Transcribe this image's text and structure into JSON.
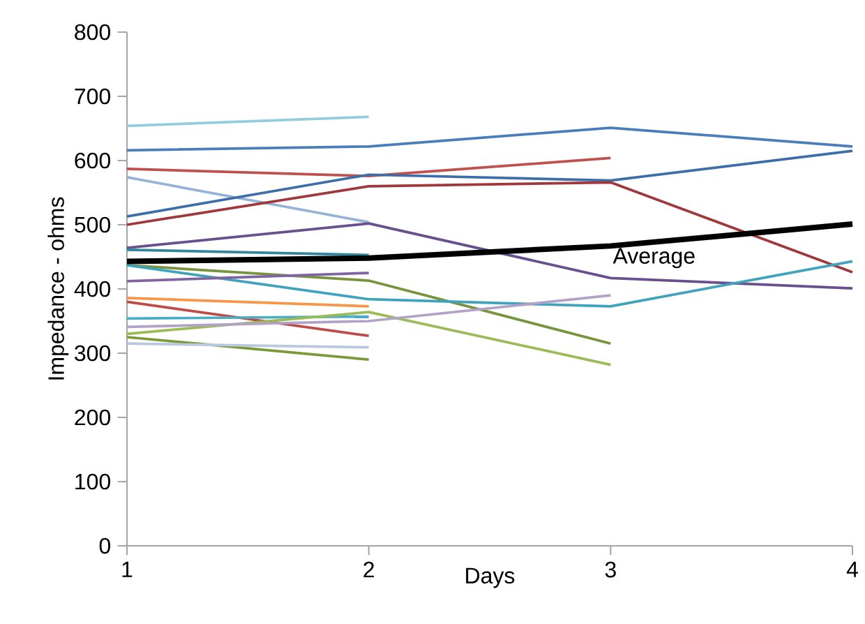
{
  "chart_data": {
    "type": "line",
    "xlabel": "Days",
    "ylabel": "Impedance - ohms",
    "x": [
      1,
      2,
      3,
      4
    ],
    "xlim": [
      1,
      4
    ],
    "xticks": [
      1,
      2,
      3,
      4
    ],
    "ylim": [
      0,
      800
    ],
    "yticks": [
      0,
      100,
      200,
      300,
      400,
      500,
      600,
      700,
      800
    ],
    "grid": false,
    "legend": false,
    "marker": "none",
    "line_style": "solid",
    "series": [
      {
        "color": "#93cddd",
        "values": [
          654,
          668,
          null,
          null
        ]
      },
      {
        "color": "#4a7ebb",
        "values": [
          616,
          622,
          651,
          622
        ]
      },
      {
        "color": "#c0504d",
        "values": [
          587,
          576,
          604,
          null
        ]
      },
      {
        "color": "#95b3d7",
        "values": [
          574,
          504,
          null,
          null
        ]
      },
      {
        "color": "#3e6ea8",
        "values": [
          513,
          578,
          569,
          615
        ]
      },
      {
        "color": "#a0373a",
        "values": [
          500,
          560,
          566,
          426
        ]
      },
      {
        "color": "#6a4f8f",
        "values": [
          464,
          502,
          417,
          401
        ]
      },
      {
        "color": "#31859c",
        "values": [
          461,
          453,
          null,
          null
        ]
      },
      {
        "color": "#77933c",
        "values": [
          437,
          413,
          315,
          null
        ]
      },
      {
        "color": "#3fa3bd",
        "values": [
          437,
          384,
          373,
          443
        ]
      },
      {
        "color": "#8064a2",
        "values": [
          412,
          425,
          null,
          null
        ]
      },
      {
        "color": "#f79646",
        "values": [
          386,
          373,
          null,
          null
        ]
      },
      {
        "color": "#be4b48",
        "values": [
          380,
          327,
          null,
          null
        ]
      },
      {
        "color": "#4bacc6",
        "values": [
          354,
          357,
          null,
          null
        ]
      },
      {
        "color": "#9bbb59",
        "values": [
          330,
          364,
          282,
          null
        ]
      },
      {
        "color": "#b3a2c7",
        "values": [
          341,
          350,
          390,
          null
        ]
      },
      {
        "color": "#7a9a3a",
        "values": [
          325,
          290,
          null,
          null
        ]
      },
      {
        "color": "#b9c7e0",
        "values": [
          315,
          309,
          null,
          null
        ]
      },
      {
        "name": "Average",
        "color": "#000000",
        "values": [
          443,
          448,
          467,
          501
        ]
      }
    ]
  }
}
